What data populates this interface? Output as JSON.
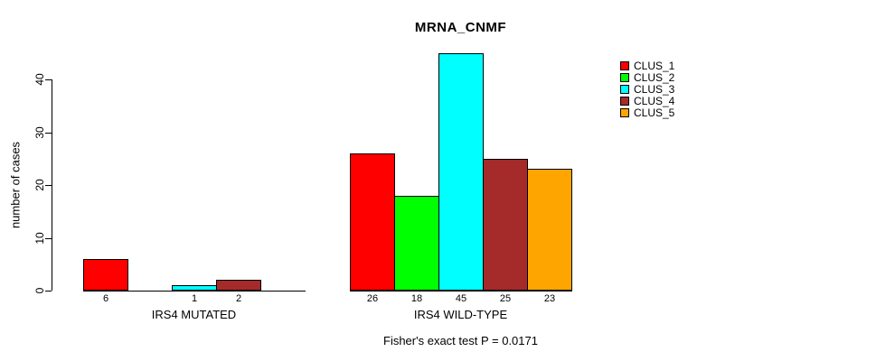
{
  "chart_data": {
    "type": "bar",
    "title": "MRNA_CNMF",
    "ylabel": "number of cases",
    "xlabel": "",
    "categories": [
      "IRS4 MUTATED",
      "IRS4 WILD-TYPE"
    ],
    "series": [
      {
        "name": "CLUS_1",
        "color": "#FF0000",
        "values": [
          6,
          26
        ]
      },
      {
        "name": "CLUS_2",
        "color": "#00FF00",
        "values": [
          0,
          18
        ]
      },
      {
        "name": "CLUS_3",
        "color": "#00FFFF",
        "values": [
          1,
          45
        ]
      },
      {
        "name": "CLUS_4",
        "color": "#A52A2A",
        "values": [
          2,
          25
        ]
      },
      {
        "name": "CLUS_5",
        "color": "#FFA500",
        "values": [
          0,
          23
        ]
      }
    ],
    "yticks": [
      0,
      10,
      20,
      30,
      40
    ],
    "ylim": [
      0,
      45.5
    ],
    "grid": false,
    "legend_position": "right",
    "bar_value_labels": true,
    "zero_bars_unlabeled": true,
    "bar_border_color": "#000000",
    "annotation": "Fisher's exact test P = 0.0171"
  }
}
